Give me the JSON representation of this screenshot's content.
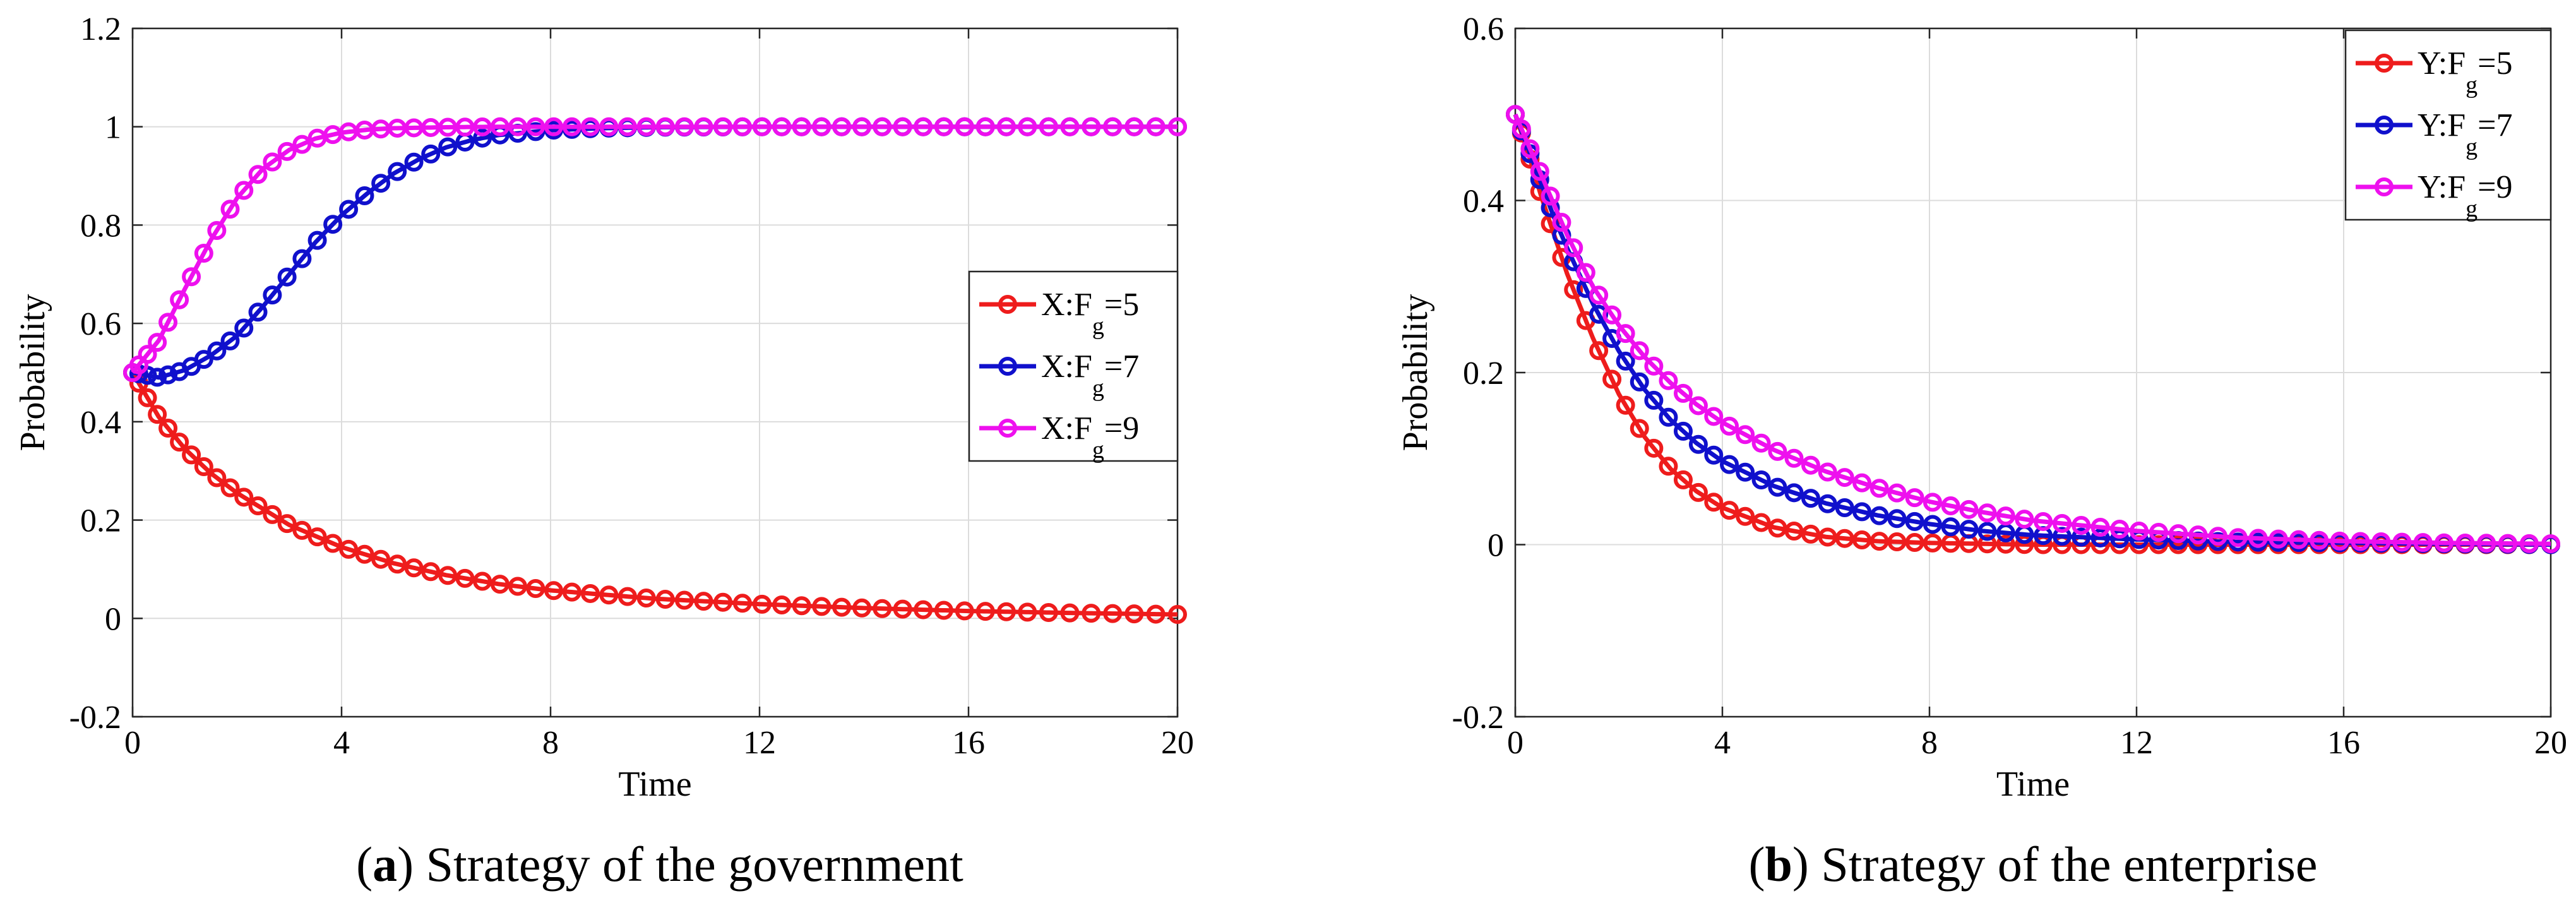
{
  "chart_data": [
    {
      "type": "line",
      "panel_letter": "a",
      "caption": "Strategy of the government",
      "xlabel": "Time",
      "ylabel": "Probability",
      "xlim": [
        0,
        20
      ],
      "ylim": [
        -0.2,
        1.2
      ],
      "xticks": [
        0,
        4,
        8,
        12,
        16,
        20
      ],
      "yticks": [
        -0.2,
        0,
        0.2,
        0.4,
        0.6,
        0.8,
        1,
        1.2
      ],
      "ytick_labels": [
        "-0.2",
        "0",
        "0.2",
        "0.4",
        "0.6",
        "0.8",
        "1",
        "1.2"
      ],
      "grid": true,
      "legend_position": "right-middle",
      "series": [
        {
          "name": "X:F",
          "sub": "g",
          "suffix": "=5",
          "color": "#ee1c1c",
          "x": [
            0,
            0.5,
            1,
            1.5,
            2,
            3,
            4,
            5,
            6,
            7,
            8,
            10,
            12,
            14,
            16,
            18,
            20
          ],
          "y": [
            0.5,
            0.41,
            0.345,
            0.295,
            0.255,
            0.19,
            0.145,
            0.112,
            0.088,
            0.07,
            0.057,
            0.04,
            0.029,
            0.021,
            0.015,
            0.011,
            0.008
          ]
        },
        {
          "name": "X:F",
          "sub": "g",
          "suffix": "=7",
          "color": "#1010cc",
          "x": [
            0,
            0.5,
            1,
            1.5,
            2,
            2.5,
            3,
            3.5,
            4,
            4.5,
            5,
            5.5,
            6,
            6.5,
            7,
            8,
            9,
            10,
            12,
            14,
            16,
            18,
            20
          ],
          "y": [
            0.5,
            0.49,
            0.505,
            0.535,
            0.575,
            0.635,
            0.7,
            0.765,
            0.82,
            0.865,
            0.905,
            0.935,
            0.958,
            0.973,
            0.983,
            0.993,
            0.997,
            0.999,
            1.0,
            1.0,
            1.0,
            1.0,
            1.0
          ]
        },
        {
          "name": "X:F",
          "sub": "g",
          "suffix": "=9",
          "color": "#ee10ee",
          "x": [
            0,
            0.5,
            1,
            1.5,
            2,
            2.5,
            3,
            3.5,
            4,
            4.5,
            5,
            6,
            7,
            8,
            10,
            12,
            14,
            16,
            18,
            20
          ],
          "y": [
            0.5,
            0.565,
            0.67,
            0.77,
            0.855,
            0.915,
            0.953,
            0.976,
            0.988,
            0.994,
            0.997,
            0.999,
            1.0,
            1.0,
            1.0,
            1.0,
            1.0,
            1.0,
            1.0,
            1.0
          ]
        }
      ]
    },
    {
      "type": "line",
      "panel_letter": "b",
      "caption": "Strategy of the enterprise",
      "xlabel": "Time",
      "ylabel": "Probability",
      "xlim": [
        0,
        20
      ],
      "ylim": [
        -0.2,
        0.6
      ],
      "xticks": [
        0,
        4,
        8,
        12,
        16,
        20
      ],
      "yticks": [
        -0.2,
        0,
        0.2,
        0.4,
        0.6
      ],
      "ytick_labels": [
        "-0.2",
        "0",
        "0.2",
        "0.4",
        "0.6"
      ],
      "grid": true,
      "legend_position": "top-right",
      "series": [
        {
          "name": "Y:F",
          "sub": "g",
          "suffix": "=5",
          "color": "#ee1c1c",
          "x": [
            0,
            0.25,
            0.5,
            0.75,
            1,
            1.5,
            2,
            2.5,
            3,
            3.5,
            4,
            5,
            6,
            7,
            8,
            10,
            12,
            14,
            16,
            18,
            20
          ],
          "y": [
            0.5,
            0.455,
            0.405,
            0.36,
            0.315,
            0.24,
            0.175,
            0.125,
            0.088,
            0.062,
            0.043,
            0.02,
            0.009,
            0.004,
            0.002,
            0.0,
            0.0,
            0.0,
            0.0,
            0.0,
            0.0
          ]
        },
        {
          "name": "Y:F",
          "sub": "g",
          "suffix": "=7",
          "color": "#1010cc",
          "x": [
            0,
            0.25,
            0.5,
            0.75,
            1,
            1.5,
            2,
            2.5,
            3,
            3.5,
            4,
            5,
            6,
            7,
            8,
            9,
            10,
            12,
            14,
            16,
            18,
            20
          ],
          "y": [
            0.5,
            0.46,
            0.42,
            0.38,
            0.345,
            0.28,
            0.225,
            0.18,
            0.145,
            0.118,
            0.097,
            0.068,
            0.048,
            0.034,
            0.024,
            0.016,
            0.011,
            0.006,
            0.003,
            0.002,
            0.001,
            0.0
          ]
        },
        {
          "name": "Y:F",
          "sub": "g",
          "suffix": "=9",
          "color": "#ee10ee",
          "x": [
            0,
            0.25,
            0.5,
            0.75,
            1,
            1.5,
            2,
            2.5,
            3,
            3.5,
            4,
            5,
            6,
            7,
            8,
            9,
            10,
            12,
            14,
            16,
            18,
            20
          ],
          "y": [
            0.5,
            0.465,
            0.43,
            0.395,
            0.36,
            0.3,
            0.255,
            0.218,
            0.188,
            0.163,
            0.142,
            0.11,
            0.085,
            0.066,
            0.05,
            0.038,
            0.028,
            0.016,
            0.008,
            0.004,
            0.002,
            0.001
          ]
        }
      ]
    }
  ]
}
